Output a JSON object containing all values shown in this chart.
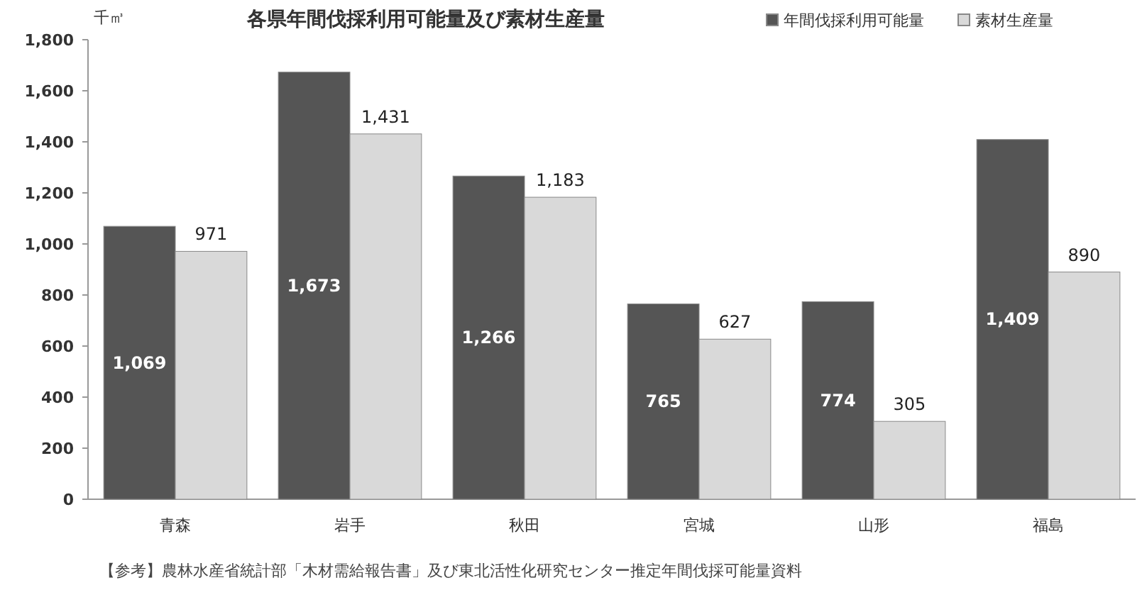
{
  "chart_data": {
    "type": "bar",
    "title": "各県年間伐採利用可能量及び素材生産量",
    "ylabel": "千㎥",
    "categories": [
      "青森",
      "岩手",
      "秋田",
      "宮城",
      "山形",
      "福島"
    ],
    "series": [
      {
        "name": "年間伐採利用可能量",
        "color": "#555555",
        "values": [
          1069,
          1673,
          1266,
          765,
          774,
          1409
        ],
        "value_labels": [
          "1,069",
          "1,673",
          "1,266",
          "765",
          "774",
          "1,409"
        ]
      },
      {
        "name": "素材生産量",
        "color": "#d9d9d9",
        "values": [
          971,
          1431,
          1183,
          627,
          305,
          890
        ],
        "value_labels": [
          "971",
          "1,431",
          "1,183",
          "627",
          "305",
          "890"
        ]
      }
    ],
    "ylim": [
      0,
      1800
    ],
    "yticks": [
      {
        "value": 0,
        "label": "0"
      },
      {
        "value": 200,
        "label": "200"
      },
      {
        "value": 400,
        "label": "400"
      },
      {
        "value": 600,
        "label": "600"
      },
      {
        "value": 800,
        "label": "800"
      },
      {
        "value": 1000,
        "label": "1,000"
      },
      {
        "value": 1200,
        "label": "1,200"
      },
      {
        "value": 1400,
        "label": "1,400"
      },
      {
        "value": 1600,
        "label": "1,600"
      },
      {
        "value": 1800,
        "label": "1,800"
      }
    ],
    "legend": "top right",
    "grid": false,
    "annotations": [
      "【参考】農林水産省統計部「木材需給報告書」及び東北活性化研究センター推定年間伐採可能量資料"
    ]
  }
}
